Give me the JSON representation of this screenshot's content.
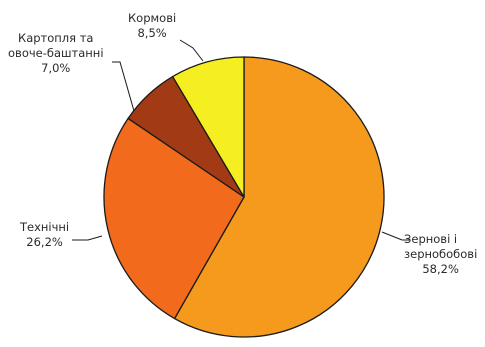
{
  "chart_data": {
    "type": "pie",
    "title": "",
    "unit": "%",
    "slices": [
      {
        "label_lines": [
          "Зернові і",
          "зернобобові"
        ],
        "value": 58.2,
        "value_text": "58,2%",
        "color": "#f59a1d"
      },
      {
        "label_lines": [
          "Технічні"
        ],
        "value": 26.2,
        "value_text": "26,2%",
        "color": "#f26a1b"
      },
      {
        "label_lines": [
          "Картопля та",
          "овоче-баштанні"
        ],
        "value": 7.0,
        "value_text": "7,0%",
        "color": "#a33a16"
      },
      {
        "label_lines": [
          "Кормові"
        ],
        "value": 8.5,
        "value_text": "8,5%",
        "color": "#f5ef22"
      }
    ],
    "start_angle_deg": 0,
    "direction": "clockwise",
    "stroke_color": "#1a1a1a"
  }
}
